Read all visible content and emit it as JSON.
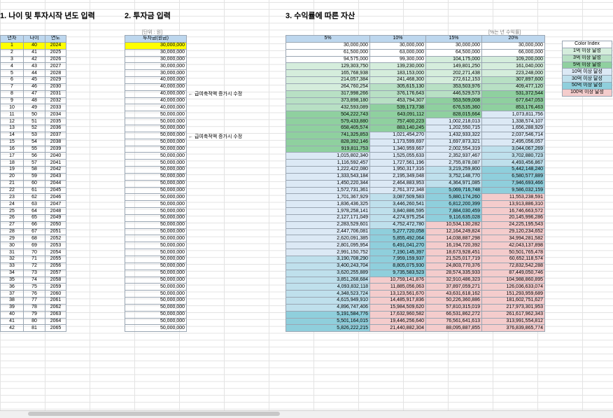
{
  "headings": {
    "h1": "1. 나이 및 투자시작 년도 입력",
    "h2": "2. 투자금 입력",
    "h3": "3. 수익률에 따른 자산"
  },
  "notes": {
    "unit": "[단위 : 원]",
    "rate_note": "[%는 년 수익률]",
    "salary_note": "← 급여축적액 증가시 수정"
  },
  "table1": {
    "headers": [
      "년차",
      "나이",
      "연도"
    ]
  },
  "table2": {
    "header": "투자금(원금)"
  },
  "table3": {
    "headers": [
      "5%",
      "10%",
      "15%",
      "20%"
    ]
  },
  "legend": {
    "title": "Color Index",
    "items": [
      "1억 이상 달성",
      "3억 이상 달성",
      "5억 이상 달성",
      "10억 이상 달성",
      "30억 이상 달성",
      "50억 이상 달성",
      "100억 이상 달성"
    ],
    "colors": [
      "#d5eddc",
      "#b8e0c4",
      "#8fd09f",
      "#dce9f5",
      "#bfe0ec",
      "#8fcfdc",
      "#f4cccc"
    ]
  },
  "rows": [
    {
      "n": "1",
      "age": "40",
      "year": "2024",
      "inv": "30,000,000",
      "p5": "30,000,000",
      "p10": "30,000,000",
      "p15": "30,000,000",
      "p20": "30,000,000"
    },
    {
      "n": "2",
      "age": "41",
      "year": "2025",
      "inv": "30,000,000",
      "p5": "61,500,000",
      "p10": "63,000,000",
      "p15": "64,500,000",
      "p20": "66,000,000"
    },
    {
      "n": "3",
      "age": "42",
      "year": "2026",
      "inv": "30,000,000",
      "p5": "94,575,000",
      "p10": "99,300,000",
      "p15": "104,175,000",
      "p20": "109,200,000"
    },
    {
      "n": "4",
      "age": "43",
      "year": "2027",
      "inv": "30,000,000",
      "p5": "129,303,750",
      "p10": "139,230,000",
      "p15": "149,801,250",
      "p20": "161,040,000"
    },
    {
      "n": "5",
      "age": "44",
      "year": "2028",
      "inv": "30,000,000",
      "p5": "165,768,938",
      "p10": "183,153,000",
      "p15": "202,271,438",
      "p20": "223,248,000"
    },
    {
      "n": "6",
      "age": "45",
      "year": "2029",
      "inv": "40,000,000",
      "p5": "214,057,384",
      "p10": "241,468,300",
      "p15": "272,612,153",
      "p20": "307,897,600"
    },
    {
      "n": "7",
      "age": "46",
      "year": "2030",
      "inv": "40,000,000",
      "p5": "264,760,254",
      "p10": "305,615,130",
      "p15": "353,503,976",
      "p20": "409,477,120"
    },
    {
      "n": "8",
      "age": "47",
      "year": "2031",
      "inv": "40,000,000",
      "p5": "317,998,266",
      "p10": "376,176,643",
      "p15": "446,529,573",
      "p20": "531,372,544"
    },
    {
      "n": "9",
      "age": "48",
      "year": "2032",
      "inv": "40,000,000",
      "p5": "373,898,180",
      "p10": "453,794,307",
      "p15": "553,509,008",
      "p20": "677,647,053"
    },
    {
      "n": "10",
      "age": "49",
      "year": "2033",
      "inv": "40,000,000",
      "p5": "432,593,089",
      "p10": "539,173,738",
      "p15": "676,535,360",
      "p20": "853,176,463"
    },
    {
      "n": "11",
      "age": "50",
      "year": "2034",
      "inv": "50,000,000",
      "p5": "504,222,743",
      "p10": "643,091,112",
      "p15": "828,015,664",
      "p20": "1,073,811,756"
    },
    {
      "n": "12",
      "age": "51",
      "year": "2035",
      "inv": "50,000,000",
      "p5": "579,433,880",
      "p10": "757,400,223",
      "p15": "1,002,218,013",
      "p20": "1,338,574,107"
    },
    {
      "n": "13",
      "age": "52",
      "year": "2036",
      "inv": "50,000,000",
      "p5": "658,405,574",
      "p10": "883,140,245",
      "p15": "1,202,550,715",
      "p20": "1,656,288,929"
    },
    {
      "n": "14",
      "age": "53",
      "year": "2037",
      "inv": "50,000,000",
      "p5": "741,325,853",
      "p10": "1,021,454,270",
      "p15": "1,432,933,322",
      "p20": "2,037,546,714"
    },
    {
      "n": "15",
      "age": "54",
      "year": "2038",
      "inv": "50,000,000",
      "p5": "828,392,146",
      "p10": "1,173,599,697",
      "p15": "1,697,873,321",
      "p20": "2,495,056,057"
    },
    {
      "n": "16",
      "age": "55",
      "year": "2039",
      "inv": "50,000,000",
      "p5": "919,811,753",
      "p10": "1,340,959,667",
      "p15": "2,002,554,319",
      "p20": "3,044,067,269"
    },
    {
      "n": "17",
      "age": "56",
      "year": "2040",
      "inv": "50,000,000",
      "p5": "1,015,802,340",
      "p10": "1,525,055,633",
      "p15": "2,352,937,467",
      "p20": "3,702,880,723"
    },
    {
      "n": "18",
      "age": "57",
      "year": "2041",
      "inv": "50,000,000",
      "p5": "1,116,592,457",
      "p10": "1,727,561,196",
      "p15": "2,755,878,087",
      "p20": "4,493,456,867"
    },
    {
      "n": "19",
      "age": "58",
      "year": "2042",
      "inv": "50,000,000",
      "p5": "1,222,422,080",
      "p10": "1,950,317,316",
      "p15": "3,219,259,800",
      "p20": "5,442,148,240"
    },
    {
      "n": "20",
      "age": "59",
      "year": "2043",
      "inv": "50,000,000",
      "p5": "1,333,543,184",
      "p10": "2,195,349,048",
      "p15": "3,752,148,770",
      "p20": "6,580,577,889"
    },
    {
      "n": "21",
      "age": "60",
      "year": "2044",
      "inv": "50,000,000",
      "p5": "1,450,220,344",
      "p10": "2,464,883,953",
      "p15": "4,364,971,085",
      "p20": "7,946,693,466"
    },
    {
      "n": "22",
      "age": "61",
      "year": "2045",
      "inv": "50,000,000",
      "p5": "1,572,731,361",
      "p10": "2,761,372,348",
      "p15": "5,069,716,748",
      "p20": "9,586,032,159"
    },
    {
      "n": "23",
      "age": "62",
      "year": "2046",
      "inv": "50,000,000",
      "p5": "1,701,367,929",
      "p10": "3,087,509,583",
      "p15": "5,880,174,260",
      "p20": "11,553,238,591"
    },
    {
      "n": "24",
      "age": "63",
      "year": "2047",
      "inv": "50,000,000",
      "p5": "1,836,436,325",
      "p10": "3,446,260,541",
      "p15": "6,812,200,399",
      "p20": "13,913,886,310"
    },
    {
      "n": "25",
      "age": "64",
      "year": "2048",
      "inv": "50,000,000",
      "p5": "1,978,258,141",
      "p10": "3,840,886,595",
      "p15": "7,884,030,459",
      "p20": "16,746,663,572"
    },
    {
      "n": "26",
      "age": "65",
      "year": "2049",
      "inv": "50,000,000",
      "p5": "2,127,171,049",
      "p10": "4,274,975,254",
      "p15": "9,116,635,028",
      "p20": "20,145,996,286"
    },
    {
      "n": "27",
      "age": "66",
      "year": "2050",
      "inv": "50,000,000",
      "p5": "2,283,529,601",
      "p10": "4,752,472,780",
      "p15": "10,534,130,282",
      "p20": "24,225,195,543"
    },
    {
      "n": "28",
      "age": "67",
      "year": "2051",
      "inv": "50,000,000",
      "p5": "2,447,706,081",
      "p10": "5,277,720,058",
      "p15": "12,164,249,824",
      "p20": "29,120,234,652"
    },
    {
      "n": "29",
      "age": "68",
      "year": "2052",
      "inv": "50,000,000",
      "p5": "2,620,091,385",
      "p10": "5,855,492,064",
      "p15": "14,038,887,298",
      "p20": "34,994,281,582"
    },
    {
      "n": "30",
      "age": "69",
      "year": "2053",
      "inv": "50,000,000",
      "p5": "2,801,095,954",
      "p10": "6,491,041,270",
      "p15": "16,194,720,392",
      "p20": "42,043,137,898"
    },
    {
      "n": "31",
      "age": "70",
      "year": "2054",
      "inv": "50,000,000",
      "p5": "2,991,150,752",
      "p10": "7,190,145,397",
      "p15": "18,673,928,451",
      "p20": "50,501,765,478"
    },
    {
      "n": "32",
      "age": "71",
      "year": "2055",
      "inv": "50,000,000",
      "p5": "3,190,708,290",
      "p10": "7,959,159,937",
      "p15": "21,525,017,719",
      "p20": "60,652,118,574"
    },
    {
      "n": "33",
      "age": "72",
      "year": "2056",
      "inv": "50,000,000",
      "p5": "3,400,243,704",
      "p10": "8,805,075,930",
      "p15": "24,803,770,376",
      "p20": "72,832,542,288"
    },
    {
      "n": "34",
      "age": "73",
      "year": "2057",
      "inv": "50,000,000",
      "p5": "3,620,255,889",
      "p10": "9,735,583,523",
      "p15": "28,574,335,933",
      "p20": "87,449,050,746"
    },
    {
      "n": "35",
      "age": "74",
      "year": "2058",
      "inv": "50,000,000",
      "p5": "3,851,268,684",
      "p10": "10,759,141,876",
      "p15": "32,910,486,323",
      "p20": "104,988,860,895"
    },
    {
      "n": "36",
      "age": "75",
      "year": "2059",
      "inv": "50,000,000",
      "p5": "4,093,832,118",
      "p10": "11,885,056,063",
      "p15": "37,897,059,271",
      "p20": "126,036,633,074"
    },
    {
      "n": "37",
      "age": "76",
      "year": "2060",
      "inv": "50,000,000",
      "p5": "4,348,523,724",
      "p10": "13,123,561,670",
      "p15": "43,631,618,162",
      "p20": "151,293,959,689"
    },
    {
      "n": "38",
      "age": "77",
      "year": "2061",
      "inv": "50,000,000",
      "p5": "4,615,949,910",
      "p10": "14,485,917,836",
      "p15": "50,226,360,886",
      "p20": "181,602,751,627"
    },
    {
      "n": "39",
      "age": "78",
      "year": "2062",
      "inv": "50,000,000",
      "p5": "4,896,747,406",
      "p10": "15,984,509,620",
      "p15": "57,810,315,019",
      "p20": "217,973,301,953"
    },
    {
      "n": "40",
      "age": "79",
      "year": "2063",
      "inv": "50,000,000",
      "p5": "5,191,584,776",
      "p10": "17,632,960,582",
      "p15": "66,531,862,272",
      "p20": "261,617,962,343"
    },
    {
      "n": "41",
      "age": "80",
      "year": "2064",
      "inv": "50,000,000",
      "p5": "5,501,164,015",
      "p10": "19,446,256,640",
      "p15": "76,561,641,613",
      "p20": "313,991,554,812"
    },
    {
      "n": "42",
      "age": "81",
      "year": "2065",
      "inv": "50,000,000",
      "p5": "5,826,222,215",
      "p10": "21,440,882,304",
      "p15": "88,095,887,855",
      "p20": "376,839,865,774"
    }
  ]
}
